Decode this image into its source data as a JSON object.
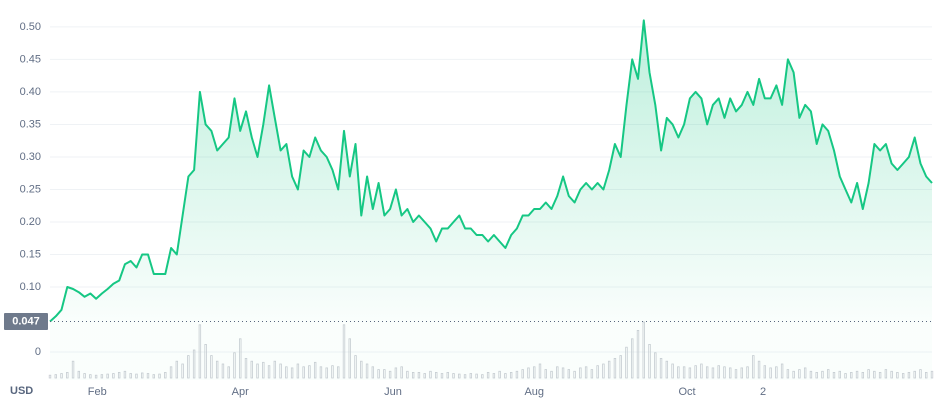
{
  "chart_data": {
    "type": "area-line",
    "y_unit": "USD",
    "color": "#16c784",
    "grid": true,
    "xlim": [
      0,
      153
    ],
    "xticks": [
      {
        "value": 8.2,
        "label": "Feb"
      },
      {
        "value": 33,
        "label": "Apr"
      },
      {
        "value": 59.5,
        "label": "Jun"
      },
      {
        "value": 84,
        "label": "Aug"
      },
      {
        "value": 110.5,
        "label": "Oct"
      },
      {
        "value": 123.7,
        "label": "2"
      }
    ],
    "ylim": [
      -0.043,
      0.526
    ],
    "yticks": [
      0,
      {
        "value": 0.1,
        "label": "0.10"
      },
      {
        "value": 0.15,
        "label": "0.15"
      },
      {
        "value": 0.2,
        "label": "0.20"
      },
      {
        "value": 0.25,
        "label": "0.25"
      },
      {
        "value": 0.3,
        "label": "0.30"
      },
      {
        "value": 0.35,
        "label": "0.35"
      },
      {
        "value": 0.4,
        "label": "0.40"
      },
      {
        "value": 0.45,
        "label": "0.45"
      },
      {
        "value": 0.5,
        "label": "0.50"
      }
    ],
    "price_line": 0.047,
    "values": [
      0.047,
      0.055,
      0.065,
      0.1,
      0.097,
      0.092,
      0.085,
      0.09,
      0.082,
      0.09,
      0.097,
      0.105,
      0.11,
      0.135,
      0.14,
      0.13,
      0.15,
      0.15,
      0.12,
      0.12,
      0.12,
      0.16,
      0.15,
      0.21,
      0.27,
      0.28,
      0.4,
      0.35,
      0.34,
      0.31,
      0.32,
      0.33,
      0.39,
      0.34,
      0.37,
      0.33,
      0.3,
      0.35,
      0.41,
      0.36,
      0.31,
      0.32,
      0.27,
      0.25,
      0.31,
      0.3,
      0.33,
      0.31,
      0.3,
      0.28,
      0.25,
      0.34,
      0.27,
      0.32,
      0.21,
      0.27,
      0.22,
      0.26,
      0.21,
      0.22,
      0.25,
      0.21,
      0.22,
      0.2,
      0.21,
      0.2,
      0.19,
      0.17,
      0.19,
      0.19,
      0.2,
      0.21,
      0.19,
      0.19,
      0.18,
      0.18,
      0.17,
      0.18,
      0.17,
      0.16,
      0.18,
      0.19,
      0.21,
      0.21,
      0.22,
      0.22,
      0.23,
      0.22,
      0.24,
      0.27,
      0.24,
      0.23,
      0.25,
      0.26,
      0.25,
      0.26,
      0.25,
      0.28,
      0.32,
      0.3,
      0.38,
      0.45,
      0.42,
      0.51,
      0.43,
      0.38,
      0.31,
      0.36,
      0.35,
      0.33,
      0.35,
      0.39,
      0.4,
      0.39,
      0.35,
      0.38,
      0.39,
      0.36,
      0.39,
      0.37,
      0.38,
      0.4,
      0.38,
      0.42,
      0.39,
      0.39,
      0.41,
      0.38,
      0.45,
      0.43,
      0.36,
      0.38,
      0.37,
      0.32,
      0.35,
      0.34,
      0.31,
      0.27,
      0.25,
      0.23,
      0.26,
      0.22,
      0.26,
      0.32,
      0.31,
      0.32,
      0.29,
      0.28,
      0.29,
      0.3,
      0.33,
      0.29,
      0.27,
      0.26
    ],
    "volume": {
      "color": "#c8ccd2",
      "ylim": [
        0,
        100
      ],
      "values": [
        5,
        6,
        8,
        10,
        30,
        12,
        8,
        6,
        5,
        6,
        7,
        8,
        10,
        12,
        8,
        7,
        9,
        8,
        6,
        7,
        10,
        20,
        30,
        25,
        40,
        50,
        95,
        60,
        40,
        30,
        25,
        20,
        45,
        70,
        35,
        30,
        25,
        28,
        22,
        30,
        25,
        20,
        18,
        25,
        20,
        22,
        28,
        20,
        18,
        22,
        20,
        95,
        70,
        40,
        30,
        25,
        20,
        15,
        15,
        12,
        18,
        20,
        12,
        10,
        10,
        8,
        12,
        10,
        8,
        10,
        8,
        7,
        6,
        8,
        7,
        6,
        10,
        8,
        12,
        8,
        10,
        12,
        15,
        18,
        20,
        25,
        15,
        12,
        20,
        18,
        15,
        12,
        18,
        20,
        15,
        22,
        25,
        30,
        35,
        40,
        55,
        70,
        85,
        100,
        60,
        45,
        35,
        30,
        25,
        20,
        20,
        18,
        22,
        25,
        20,
        18,
        22,
        20,
        18,
        15,
        18,
        20,
        40,
        30,
        22,
        18,
        20,
        25,
        15,
        12,
        15,
        18,
        12,
        10,
        12,
        15,
        10,
        12,
        8,
        10,
        12,
        10,
        15,
        12,
        10,
        15,
        12,
        10,
        8,
        10,
        12,
        15,
        10,
        12
      ]
    }
  }
}
